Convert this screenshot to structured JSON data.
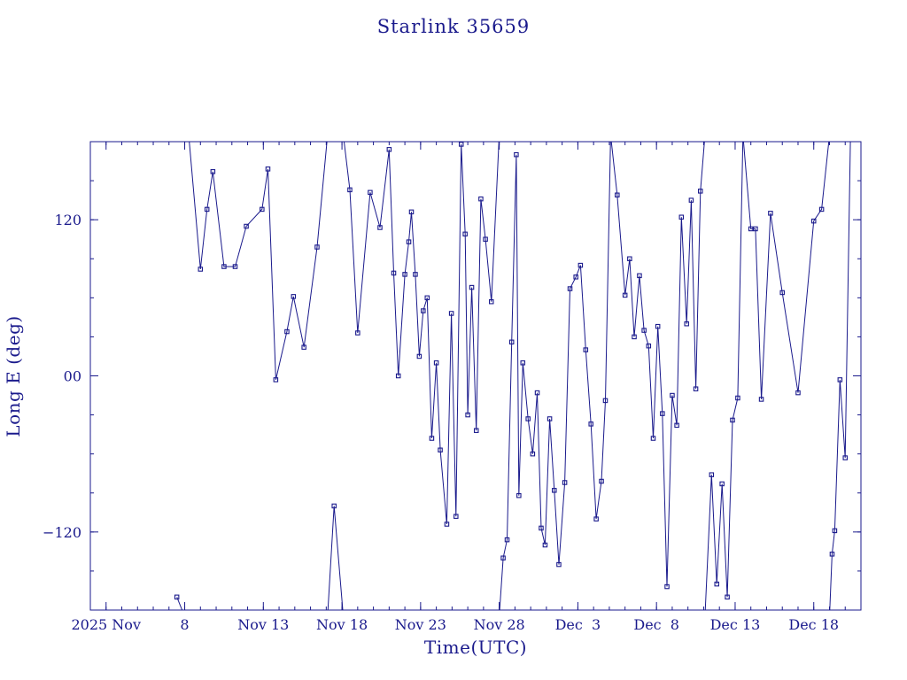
{
  "colors": {
    "ink": "#1a1a8c",
    "line": "#1a1a8c",
    "background": "#ffffff"
  },
  "chart_data": {
    "type": "scatter",
    "title": "Starlink 35659",
    "xlabel": "Time(UTC)",
    "ylabel": "Long E (deg)",
    "xlim": [
      "2025-11-02T00:00",
      "2025-12-21T00:00"
    ],
    "ylim": [
      -180,
      180
    ],
    "x_ticks": [
      "2025-11-03",
      "2025-11-08",
      "2025-11-13",
      "2025-11-18",
      "2025-11-23",
      "2025-11-28",
      "2025-12-03",
      "2025-12-08",
      "2025-12-13",
      "2025-12-18"
    ],
    "x_tick_labels": [
      "2025 Nov",
      "8",
      "Nov 13",
      "Nov 18",
      "Nov 23",
      "Nov 28",
      "Dec  3",
      "Dec  8",
      "Dec 13",
      "Dec 18"
    ],
    "y_ticks": [
      -120,
      0,
      120
    ],
    "y_tick_labels": [
      "−120",
      "00",
      "120"
    ],
    "grid": false,
    "legend": "none",
    "marker": "square",
    "series": [
      {
        "points": [
          [
            "2025-11-07T12:00",
            -170
          ],
          [
            "2025-11-08T00:00",
            -185
          ]
        ]
      },
      {
        "points": [
          [
            "2025-11-08T00:00",
            182
          ],
          [
            "2025-11-08T07:00",
            180
          ],
          [
            "2025-11-09T00:00",
            82
          ],
          [
            "2025-11-09T10:00",
            128
          ],
          [
            "2025-11-09T19:00",
            157
          ],
          [
            "2025-11-10T12:00",
            84
          ],
          [
            "2025-11-11T05:00",
            84
          ],
          [
            "2025-11-11T22:00",
            115
          ],
          [
            "2025-11-12T22:00",
            128
          ],
          [
            "2025-11-13T07:00",
            159
          ],
          [
            "2025-11-13T19:00",
            -3
          ],
          [
            "2025-11-14T12:00",
            34
          ],
          [
            "2025-11-14T22:00",
            61
          ],
          [
            "2025-11-15T14:00",
            22
          ],
          [
            "2025-11-16T10:00",
            99
          ],
          [
            "2025-11-17T02:00",
            185
          ]
        ]
      },
      {
        "points": [
          [
            "2025-11-17T02:00",
            -185
          ],
          [
            "2025-11-17T12:00",
            -100
          ],
          [
            "2025-11-18T02:00",
            -185
          ]
        ]
      },
      {
        "points": [
          [
            "2025-11-18T02:00",
            185
          ],
          [
            "2025-11-18T12:00",
            143
          ],
          [
            "2025-11-19T00:00",
            33
          ],
          [
            "2025-11-19T19:00",
            141
          ],
          [
            "2025-11-20T10:00",
            114
          ],
          [
            "2025-11-21T00:00",
            174
          ],
          [
            "2025-11-21T07:00",
            79
          ],
          [
            "2025-11-21T14:00",
            0
          ],
          [
            "2025-11-22T00:00",
            78
          ],
          [
            "2025-11-22T06:00",
            103
          ],
          [
            "2025-11-22T10:00",
            126
          ],
          [
            "2025-11-22T16:00",
            78
          ],
          [
            "2025-11-22T22:00",
            15
          ],
          [
            "2025-11-23T04:00",
            50
          ],
          [
            "2025-11-23T10:00",
            60
          ],
          [
            "2025-11-23T17:00",
            -48
          ],
          [
            "2025-11-24T00:00",
            10
          ],
          [
            "2025-11-24T06:00",
            -57
          ],
          [
            "2025-11-24T16:00",
            -114
          ],
          [
            "2025-11-24T23:00",
            48
          ],
          [
            "2025-11-25T06:00",
            -108
          ],
          [
            "2025-11-25T14:00",
            178
          ],
          [
            "2025-11-25T20:00",
            109
          ],
          [
            "2025-11-26T00:00",
            -30
          ],
          [
            "2025-11-26T06:00",
            68
          ],
          [
            "2025-11-26T13:00",
            -42
          ],
          [
            "2025-11-26T20:00",
            136
          ],
          [
            "2025-11-27T03:00",
            105
          ],
          [
            "2025-11-27T12:00",
            57
          ],
          [
            "2025-11-28T00:00",
            185
          ]
        ]
      },
      {
        "points": [
          [
            "2025-11-28T00:00",
            -185
          ],
          [
            "2025-11-28T06:00",
            -140
          ],
          [
            "2025-11-28T12:00",
            -126
          ],
          [
            "2025-11-28T19:00",
            26
          ],
          [
            "2025-11-29T02:00",
            170
          ],
          [
            "2025-11-29T06:00",
            -92
          ],
          [
            "2025-11-29T12:00",
            10
          ],
          [
            "2025-11-29T20:00",
            -33
          ],
          [
            "2025-11-30T03:00",
            -60
          ],
          [
            "2025-11-30T10:00",
            -13
          ],
          [
            "2025-11-30T16:00",
            -117
          ],
          [
            "2025-11-30T22:00",
            -130
          ],
          [
            "2025-12-01T05:00",
            -33
          ],
          [
            "2025-12-01T12:00",
            -88
          ],
          [
            "2025-12-01T19:00",
            -145
          ],
          [
            "2025-12-02T04:00",
            -82
          ],
          [
            "2025-12-02T12:00",
            67
          ],
          [
            "2025-12-02T21:00",
            76
          ],
          [
            "2025-12-03T04:00",
            85
          ],
          [
            "2025-12-03T12:00",
            20
          ],
          [
            "2025-12-03T20:00",
            -37
          ],
          [
            "2025-12-04T04:00",
            -110
          ],
          [
            "2025-12-04T12:00",
            -81
          ],
          [
            "2025-12-04T18:00",
            -19
          ],
          [
            "2025-12-05T02:00",
            185
          ]
        ]
      },
      {
        "points": [
          [
            "2025-12-05T02:00",
            185
          ],
          [
            "2025-12-05T12:00",
            139
          ],
          [
            "2025-12-06T00:00",
            62
          ],
          [
            "2025-12-06T07:00",
            90
          ],
          [
            "2025-12-06T14:00",
            30
          ],
          [
            "2025-12-06T22:00",
            77
          ],
          [
            "2025-12-07T05:00",
            35
          ],
          [
            "2025-12-07T12:00",
            23
          ],
          [
            "2025-12-07T19:00",
            -48
          ],
          [
            "2025-12-08T02:00",
            38
          ],
          [
            "2025-12-08T09:00",
            -29
          ],
          [
            "2025-12-08T16:00",
            -162
          ],
          [
            "2025-12-09T00:00",
            -15
          ],
          [
            "2025-12-09T07:00",
            -38
          ],
          [
            "2025-12-09T14:00",
            122
          ],
          [
            "2025-12-09T22:00",
            40
          ],
          [
            "2025-12-10T05:00",
            135
          ],
          [
            "2025-12-10T12:00",
            -10
          ],
          [
            "2025-12-10T19:00",
            142
          ],
          [
            "2025-12-11T02:00",
            185
          ]
        ]
      },
      {
        "points": [
          [
            "2025-12-11T02:00",
            -185
          ],
          [
            "2025-12-11T12:00",
            -76
          ],
          [
            "2025-12-11T20:00",
            -160
          ],
          [
            "2025-12-12T04:00",
            -83
          ],
          [
            "2025-12-12T12:00",
            -170
          ],
          [
            "2025-12-12T20:00",
            -34
          ],
          [
            "2025-12-13T04:00",
            -17
          ],
          [
            "2025-12-13T12:00",
            185
          ]
        ]
      },
      {
        "points": [
          [
            "2025-12-13T12:00",
            185
          ],
          [
            "2025-12-14T00:00",
            113
          ],
          [
            "2025-12-14T07:00",
            113
          ],
          [
            "2025-12-14T16:00",
            -18
          ],
          [
            "2025-12-15T06:00",
            125
          ],
          [
            "2025-12-16T00:00",
            64
          ],
          [
            "2025-12-17T00:00",
            -13
          ],
          [
            "2025-12-18T00:00",
            119
          ],
          [
            "2025-12-18T12:00",
            128
          ],
          [
            "2025-12-19T00:00",
            185
          ]
        ]
      },
      {
        "points": [
          [
            "2025-12-19T00:00",
            -185
          ],
          [
            "2025-12-19T04:00",
            -137
          ],
          [
            "2025-12-19T08:00",
            -119
          ],
          [
            "2025-12-19T16:00",
            -3
          ],
          [
            "2025-12-20T00:00",
            -63
          ],
          [
            "2025-12-20T08:00",
            185
          ]
        ]
      }
    ]
  }
}
